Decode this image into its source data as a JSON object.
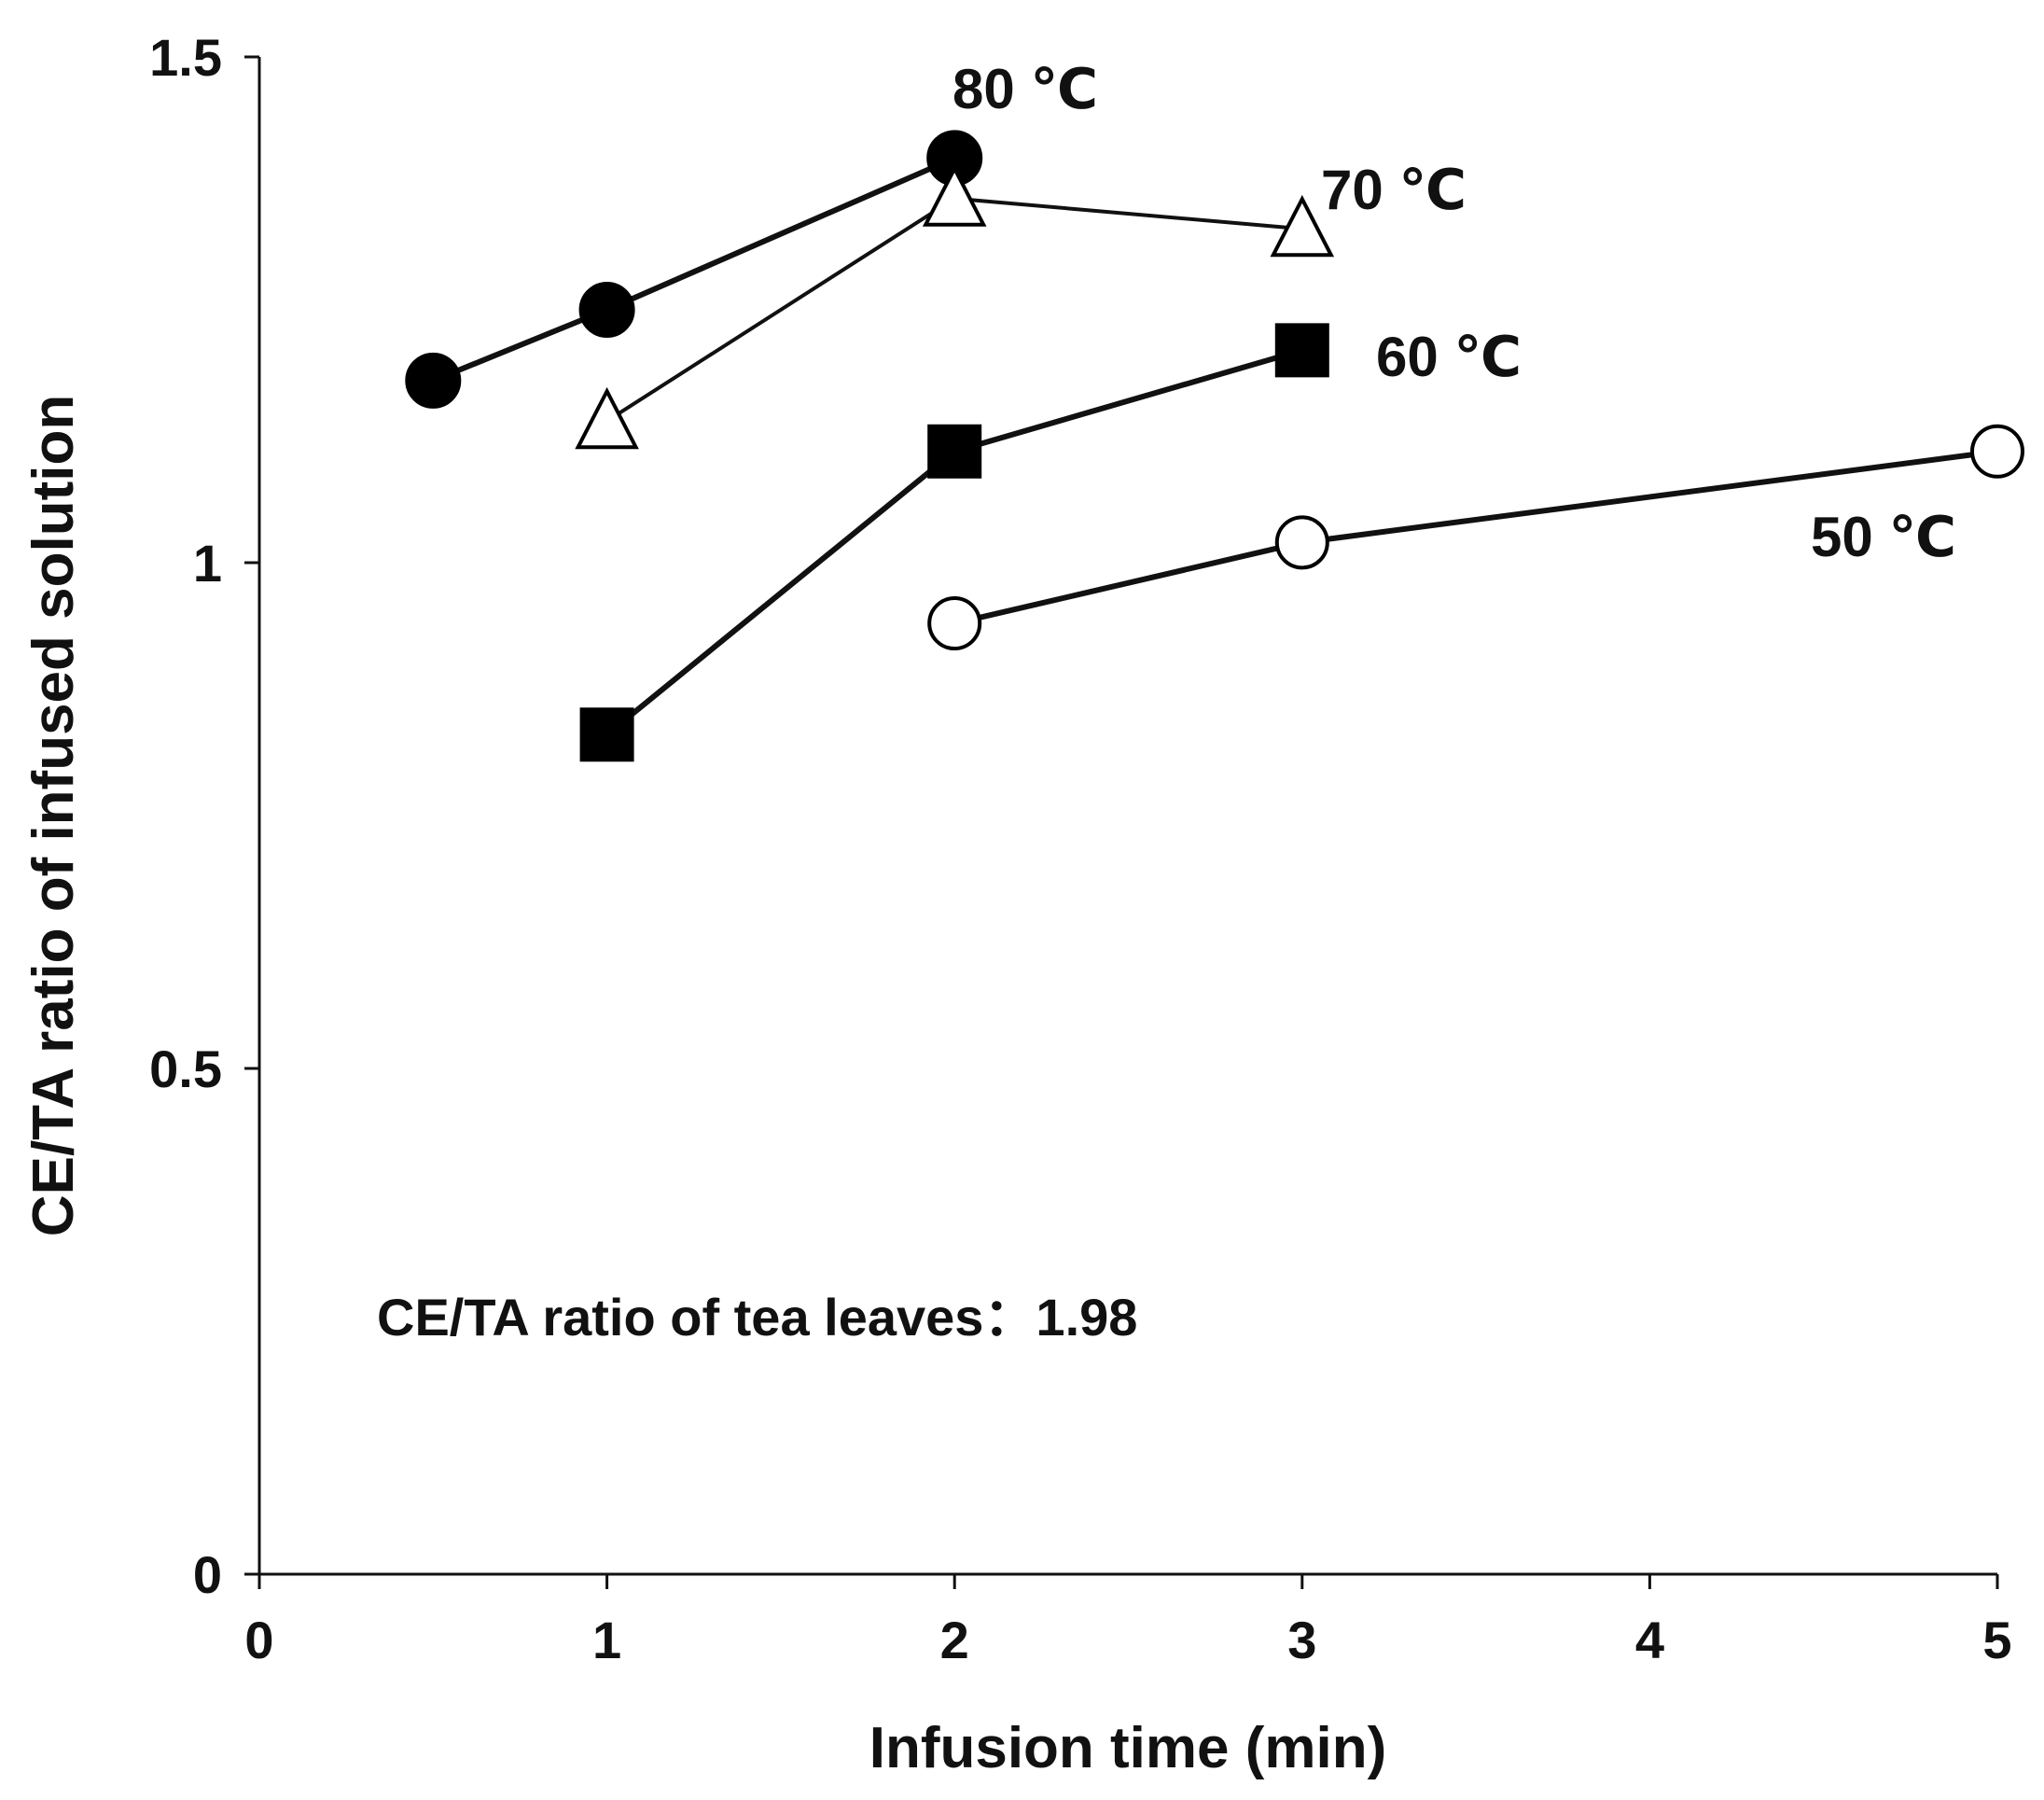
{
  "chart_data": {
    "type": "line",
    "title": "",
    "xlabel": "Infusion time (min)",
    "ylabel": "CE/TA ratio of infused solution",
    "xlim": [
      0,
      5
    ],
    "ylim": [
      0,
      1.5
    ],
    "xticks": [
      0,
      1,
      2,
      3,
      4,
      5
    ],
    "xtick_labels": [
      "0",
      "1",
      "2",
      "3",
      "4",
      "5"
    ],
    "yticks": [
      0,
      0.5,
      1,
      1.5
    ],
    "ytick_labels": [
      "0",
      "0.5",
      "1",
      "1.5"
    ],
    "grid": false,
    "series": [
      {
        "name": "80 ℃",
        "label": "80 ℃",
        "marker": "filled-circle",
        "line_width": 6,
        "x": [
          0.5,
          1,
          2
        ],
        "y": [
          1.18,
          1.25,
          1.4
        ]
      },
      {
        "name": "70 ℃",
        "label": "70 ℃",
        "marker": "open-triangle",
        "line_width": 4,
        "x": [
          1,
          2,
          3
        ],
        "y": [
          1.14,
          1.36,
          1.33
        ]
      },
      {
        "name": "60 ℃",
        "label": "60 ℃",
        "marker": "filled-square",
        "line_width": 6,
        "x": [
          1,
          2,
          3
        ],
        "y": [
          0.83,
          1.11,
          1.21
        ]
      },
      {
        "name": "50 ℃",
        "label": "50 ℃",
        "marker": "open-circle",
        "line_width": 6,
        "x": [
          2,
          3,
          5
        ],
        "y": [
          0.94,
          1.02,
          1.11
        ]
      }
    ],
    "annotations": [
      {
        "text": "CE/TA ratio of tea leaves：1.98"
      }
    ]
  }
}
